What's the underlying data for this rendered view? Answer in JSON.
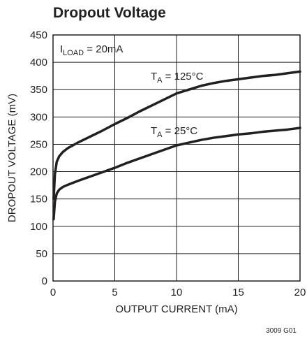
{
  "chart_data": {
    "type": "line",
    "title": "Dropout Voltage",
    "xlabel": "OUTPUT CURRENT (mA)",
    "ylabel": "DROPOUT VOLTAGE (mV)",
    "xlim": [
      0,
      20
    ],
    "ylim": [
      0,
      450
    ],
    "xticks": [
      0,
      5,
      10,
      15,
      20
    ],
    "yticks": [
      0,
      50,
      100,
      150,
      200,
      250,
      300,
      350,
      400,
      450
    ],
    "grid": true,
    "condition": {
      "main": "I",
      "sub": "LOAD",
      "rest": " = 20mA"
    },
    "series": [
      {
        "name": "TA = 125°C",
        "label": {
          "main": "T",
          "sub": "A",
          "rest": " = 125°C"
        },
        "x": [
          0.05,
          0.15,
          0.3,
          0.5,
          0.8,
          1.2,
          2,
          3,
          4,
          5,
          6,
          7,
          8,
          9,
          10,
          11,
          12,
          13,
          14,
          15,
          16,
          17,
          18,
          19,
          20
        ],
        "y": [
          150,
          195,
          218,
          228,
          236,
          243,
          253,
          264,
          275,
          287,
          298,
          310,
          321,
          332,
          343,
          350,
          357,
          362,
          366,
          369,
          372,
          375,
          377,
          380,
          383
        ]
      },
      {
        "name": "TA = 25°C",
        "label": {
          "main": "T",
          "sub": "A",
          "rest": " = 25°C"
        },
        "x": [
          0.05,
          0.15,
          0.3,
          0.5,
          0.8,
          1.2,
          2,
          3,
          4,
          5,
          6,
          7,
          8,
          9,
          10,
          11,
          12,
          13,
          14,
          15,
          16,
          17,
          18,
          19,
          20
        ],
        "y": [
          113,
          145,
          160,
          167,
          172,
          176,
          183,
          191,
          199,
          207,
          216,
          224,
          232,
          240,
          248,
          253,
          258,
          262,
          265,
          268,
          270,
          273,
          275,
          277,
          280
        ]
      }
    ],
    "figure_id": "3009 G01"
  }
}
